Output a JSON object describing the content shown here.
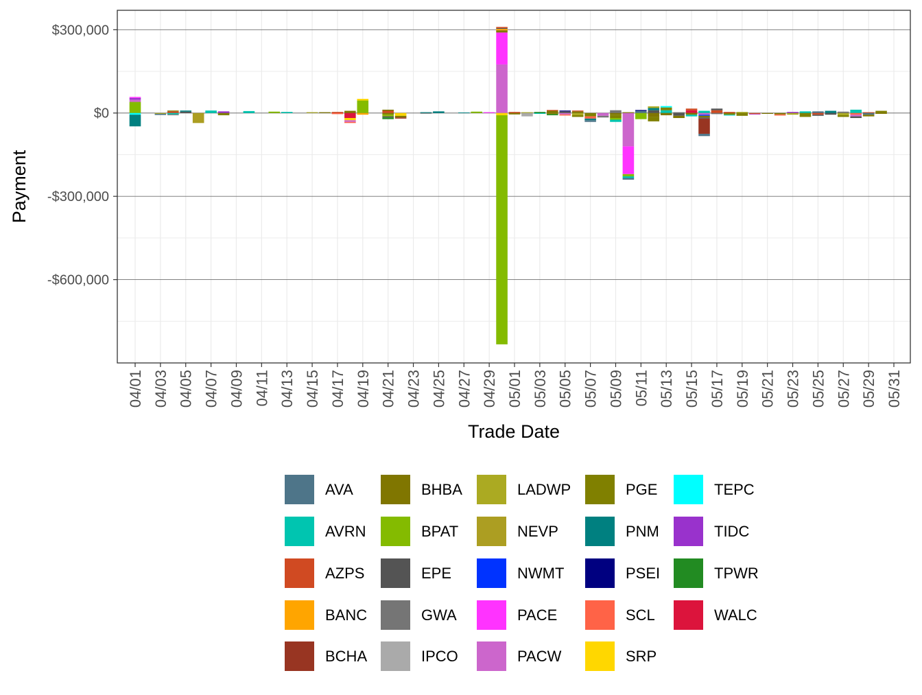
{
  "chart_data": {
    "type": "bar",
    "stacked": true,
    "xlabel": "Trade Date",
    "ylabel": "Payment",
    "y_ticks": [
      {
        "value": 300000,
        "label": "$300,000"
      },
      {
        "value": 0,
        "label": "$0"
      },
      {
        "value": -300000,
        "label": "-$300,000"
      },
      {
        "value": -600000,
        "label": "-$600,000"
      }
    ],
    "ylim": [
      -900000,
      370000
    ],
    "x_tick_labels": [
      "04/01",
      "04/03",
      "04/05",
      "04/07",
      "04/09",
      "04/11",
      "04/13",
      "04/15",
      "04/17",
      "04/19",
      "04/21",
      "04/23",
      "04/25",
      "04/27",
      "04/29",
      "05/01",
      "05/03",
      "05/05",
      "05/07",
      "05/09",
      "05/11",
      "05/13",
      "05/15",
      "05/17",
      "05/19",
      "05/21",
      "05/23",
      "05/25",
      "05/27",
      "05/29",
      "05/31"
    ],
    "grid": true,
    "legend_position": "bottom",
    "legend": [
      {
        "name": "AVA",
        "color": "#4E7589"
      },
      {
        "name": "AVRN",
        "color": "#00C5B0"
      },
      {
        "name": "AZPS",
        "color": "#D04A22"
      },
      {
        "name": "BANC",
        "color": "#FFA500"
      },
      {
        "name": "BCHA",
        "color": "#983522"
      },
      {
        "name": "BHBA",
        "color": "#807600"
      },
      {
        "name": "BPAT",
        "color": "#84BB00"
      },
      {
        "name": "EPE",
        "color": "#545454"
      },
      {
        "name": "GWA",
        "color": "#757575"
      },
      {
        "name": "IPCO",
        "color": "#AAAAAA"
      },
      {
        "name": "LADWP",
        "color": "#ABAA22"
      },
      {
        "name": "NEVP",
        "color": "#AC9E22"
      },
      {
        "name": "NWMT",
        "color": "#0033FF"
      },
      {
        "name": "PACE",
        "color": "#FF33FF"
      },
      {
        "name": "PACW",
        "color": "#CC66CC"
      },
      {
        "name": "PGE",
        "color": "#808000"
      },
      {
        "name": "PNM",
        "color": "#008080"
      },
      {
        "name": "PSEI",
        "color": "#000080"
      },
      {
        "name": "SCL",
        "color": "#FF6347"
      },
      {
        "name": "SRP",
        "color": "#FFD700"
      },
      {
        "name": "TEPC",
        "color": "#00FFFF"
      },
      {
        "name": "TIDC",
        "color": "#9932CC"
      },
      {
        "name": "TPWR",
        "color": "#228B22"
      },
      {
        "name": "WALC",
        "color": "#DC143C"
      }
    ],
    "days": [
      {
        "date": "04/01",
        "segments": [
          [
            "BPAT",
            40000
          ],
          [
            "PACW",
            8000
          ],
          [
            "TIDC",
            6000
          ],
          [
            "PACE",
            4000
          ],
          [
            "TEPC",
            -6000
          ],
          [
            "PNM",
            -42000
          ]
        ]
      },
      {
        "date": "04/02",
        "segments": []
      },
      {
        "date": "04/03",
        "segments": [
          [
            "LADWP",
            -3000
          ],
          [
            "AVA",
            -4000
          ]
        ]
      },
      {
        "date": "04/04",
        "segments": [
          [
            "AZPS",
            6000
          ],
          [
            "BHBA",
            3000
          ],
          [
            "AVRN",
            -5000
          ],
          [
            "GWA",
            -3000
          ]
        ]
      },
      {
        "date": "04/05",
        "segments": [
          [
            "EPE",
            5000
          ],
          [
            "PNM",
            4000
          ]
        ]
      },
      {
        "date": "04/06",
        "segments": [
          [
            "NEVP",
            -36000
          ]
        ]
      },
      {
        "date": "04/07",
        "segments": [
          [
            "AVRN",
            9000
          ]
        ]
      },
      {
        "date": "04/08",
        "segments": [
          [
            "TIDC",
            6000
          ],
          [
            "PGE",
            -8000
          ]
        ]
      },
      {
        "date": "04/09",
        "segments": []
      },
      {
        "date": "04/10",
        "segments": [
          [
            "AVRN",
            7000
          ]
        ]
      },
      {
        "date": "04/11",
        "segments": []
      },
      {
        "date": "04/12",
        "segments": [
          [
            "BPAT",
            5000
          ]
        ]
      },
      {
        "date": "04/13",
        "segments": [
          [
            "AVRN",
            4000
          ]
        ]
      },
      {
        "date": "04/14",
        "segments": []
      },
      {
        "date": "04/15",
        "segments": [
          [
            "LADWP",
            3000
          ]
        ]
      },
      {
        "date": "04/16",
        "segments": [
          [
            "BHBA",
            3000
          ]
        ]
      },
      {
        "date": "04/17",
        "segments": [
          [
            "AZPS",
            4000
          ],
          [
            "SCL",
            -4000
          ]
        ]
      },
      {
        "date": "04/18",
        "segments": [
          [
            "BHBA",
            8000
          ],
          [
            "WALC",
            -18000
          ],
          [
            "SRP",
            -8000
          ],
          [
            "PACW",
            -6000
          ],
          [
            "SCL",
            -4000
          ]
        ]
      },
      {
        "date": "04/19",
        "segments": [
          [
            "BPAT",
            45000
          ],
          [
            "SRP",
            6000
          ],
          [
            "BANC",
            -6000
          ]
        ]
      },
      {
        "date": "04/20",
        "segments": []
      },
      {
        "date": "04/21",
        "segments": [
          [
            "AZPS",
            8000
          ],
          [
            "BHBA",
            4000
          ],
          [
            "PGE",
            -6000
          ],
          [
            "BPAT",
            -6000
          ],
          [
            "EPE",
            -4000
          ],
          [
            "TPWR",
            -6000
          ]
        ]
      },
      {
        "date": "04/22",
        "segments": [
          [
            "SRP",
            -10000
          ],
          [
            "BHBA",
            -6000
          ],
          [
            "BCHA",
            -4000
          ]
        ]
      },
      {
        "date": "04/23",
        "segments": []
      },
      {
        "date": "04/24",
        "segments": [
          [
            "PNM",
            3000
          ],
          [
            "GWA",
            -2000
          ]
        ]
      },
      {
        "date": "04/25",
        "segments": [
          [
            "PNM",
            6000
          ]
        ]
      },
      {
        "date": "04/26",
        "segments": []
      },
      {
        "date": "04/27",
        "segments": [
          [
            "PNM",
            2000
          ]
        ]
      },
      {
        "date": "04/28",
        "segments": [
          [
            "BPAT",
            5000
          ]
        ]
      },
      {
        "date": "04/29",
        "segments": [
          [
            "PACE",
            3000
          ]
        ]
      },
      {
        "date": "04/30",
        "segments": [
          [
            "PACW",
            175000
          ],
          [
            "PACE",
            115000
          ],
          [
            "BHBA",
            8000
          ],
          [
            "BANC",
            5000
          ],
          [
            "EPE",
            3000
          ],
          [
            "AZPS",
            4000
          ],
          [
            "SRP",
            -8000
          ],
          [
            "BPAT",
            -825000
          ]
        ]
      },
      {
        "date": "05/01",
        "segments": [
          [
            "AZPS",
            4000
          ],
          [
            "BHBA",
            -5000
          ]
        ]
      },
      {
        "date": "05/02",
        "segments": [
          [
            "LADWP",
            3000
          ],
          [
            "IPCO",
            -12000
          ]
        ]
      },
      {
        "date": "05/03",
        "segments": [
          [
            "TPWR",
            4000
          ],
          [
            "AVRN",
            -3000
          ]
        ]
      },
      {
        "date": "05/04",
        "segments": [
          [
            "BHBA",
            8000
          ],
          [
            "AZPS",
            3000
          ],
          [
            "PGE",
            -4000
          ],
          [
            "TPWR",
            -4000
          ]
        ]
      },
      {
        "date": "05/05",
        "segments": [
          [
            "EPE",
            6000
          ],
          [
            "PSEI",
            3000
          ],
          [
            "PACW",
            -5000
          ],
          [
            "SCL",
            -4000
          ]
        ]
      },
      {
        "date": "05/06",
        "segments": [
          [
            "BHBA",
            6000
          ],
          [
            "AZPS",
            3000
          ],
          [
            "LADWP",
            -8000
          ],
          [
            "PGE",
            -6000
          ]
        ]
      },
      {
        "date": "05/07",
        "segments": [
          [
            "PGE",
            -12000
          ],
          [
            "SCL",
            -8000
          ],
          [
            "PNM",
            -6000
          ],
          [
            "AVA",
            -6000
          ]
        ]
      },
      {
        "date": "05/08",
        "segments": [
          [
            "PACW",
            -10000
          ],
          [
            "GWA",
            -6000
          ]
        ]
      },
      {
        "date": "05/09",
        "segments": [
          [
            "GWA",
            10000
          ],
          [
            "BHBA",
            -6000
          ],
          [
            "PGE",
            -12000
          ],
          [
            "BPAT",
            -6000
          ],
          [
            "AVRN",
            -8000
          ]
        ]
      },
      {
        "date": "05/10",
        "segments": [
          [
            "BHBA",
            3000
          ],
          [
            "PACW",
            -120000
          ],
          [
            "PACE",
            -100000
          ],
          [
            "BPAT",
            -8000
          ],
          [
            "AVRN",
            -6000
          ],
          [
            "AVA",
            -6000
          ]
        ]
      },
      {
        "date": "05/11",
        "segments": [
          [
            "AVA",
            8000
          ],
          [
            "PSEI",
            3000
          ],
          [
            "BPAT",
            -22000
          ]
        ]
      },
      {
        "date": "05/12",
        "segments": [
          [
            "EPE",
            10000
          ],
          [
            "PNM",
            8000
          ],
          [
            "LADWP",
            6000
          ],
          [
            "BHBA",
            -14000
          ],
          [
            "PGE",
            -16000
          ]
        ]
      },
      {
        "date": "05/13",
        "segments": [
          [
            "AVRN",
            10000
          ],
          [
            "PGE",
            10000
          ],
          [
            "TEPC",
            5000
          ],
          [
            "BHBA",
            -8000
          ]
        ]
      },
      {
        "date": "05/14",
        "segments": [
          [
            "GWA",
            3000
          ],
          [
            "EPE",
            -10000
          ],
          [
            "BHBA",
            -8000
          ]
        ]
      },
      {
        "date": "05/15",
        "segments": [
          [
            "WALC",
            10000
          ],
          [
            "AZPS",
            6000
          ],
          [
            "BHBA",
            -6000
          ],
          [
            "AVRN",
            -6000
          ]
        ]
      },
      {
        "date": "05/16",
        "segments": [
          [
            "AVRN",
            8000
          ],
          [
            "PACW",
            -6000
          ],
          [
            "NWMT",
            -4000
          ],
          [
            "BHBA",
            -6000
          ],
          [
            "EPE",
            -4000
          ],
          [
            "BCHA",
            -55000
          ],
          [
            "AVA",
            -8000
          ]
        ]
      },
      {
        "date": "05/17",
        "segments": [
          [
            "AZPS",
            10000
          ],
          [
            "EPE",
            6000
          ],
          [
            "GWA",
            -4000
          ]
        ]
      },
      {
        "date": "05/18",
        "segments": [
          [
            "AZPS",
            4000
          ],
          [
            "PGE",
            -6000
          ],
          [
            "AVRN",
            -3000
          ]
        ]
      },
      {
        "date": "05/19",
        "segments": [
          [
            "LADWP",
            4000
          ],
          [
            "PGE",
            -10000
          ]
        ]
      },
      {
        "date": "05/20",
        "segments": [
          [
            "AZPS",
            -3000
          ],
          [
            "PACW",
            -3000
          ]
        ]
      },
      {
        "date": "05/21",
        "segments": [
          [
            "BHBA",
            -3000
          ]
        ]
      },
      {
        "date": "05/22",
        "segments": [
          [
            "BHBA",
            -5000
          ],
          [
            "SCL",
            -4000
          ]
        ]
      },
      {
        "date": "05/23",
        "segments": [
          [
            "TIDC",
            4000
          ],
          [
            "LADWP",
            -6000
          ]
        ]
      },
      {
        "date": "05/24",
        "segments": [
          [
            "AVRN",
            6000
          ],
          [
            "PGE",
            -14000
          ]
        ]
      },
      {
        "date": "05/25",
        "segments": [
          [
            "AVA",
            6000
          ],
          [
            "AZPS",
            -6000
          ],
          [
            "EPE",
            -4000
          ]
        ]
      },
      {
        "date": "05/26",
        "segments": [
          [
            "PNM",
            8000
          ],
          [
            "EPE",
            -6000
          ]
        ]
      },
      {
        "date": "05/27",
        "segments": [
          [
            "GWA",
            5000
          ],
          [
            "LADWP",
            -8000
          ],
          [
            "PGE",
            -6000
          ]
        ]
      },
      {
        "date": "05/28",
        "segments": [
          [
            "AVRN",
            12000
          ],
          [
            "SCL",
            -6000
          ],
          [
            "PACW",
            -6000
          ],
          [
            "EPE",
            -6000
          ]
        ]
      },
      {
        "date": "05/29",
        "segments": [
          [
            "AZPS",
            3000
          ],
          [
            "AVA",
            -6000
          ],
          [
            "BHBA",
            -6000
          ]
        ]
      },
      {
        "date": "05/30",
        "segments": [
          [
            "PGE",
            8000
          ],
          [
            "BHBA",
            -3000
          ]
        ]
      }
    ]
  }
}
